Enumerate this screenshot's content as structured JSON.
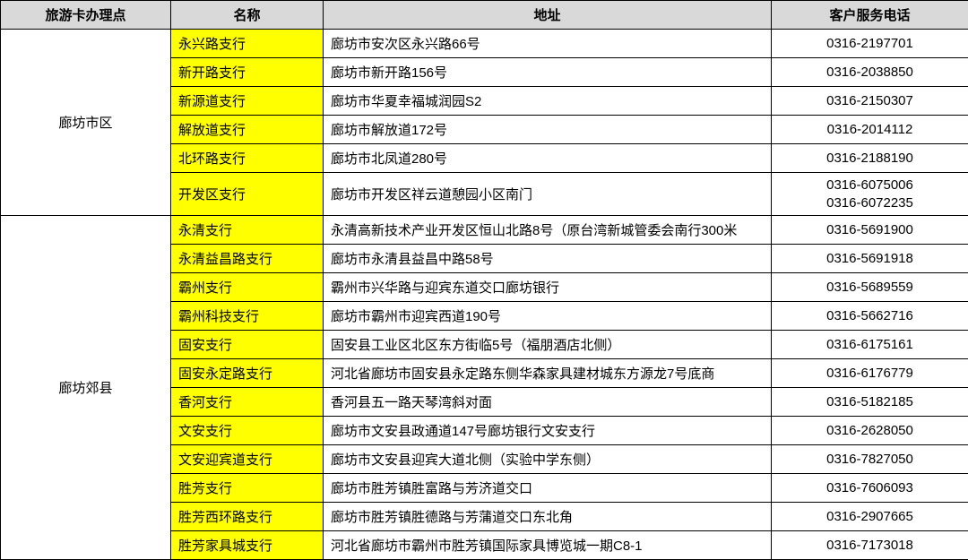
{
  "headers": {
    "region": "旅游卡办理点",
    "name": "名称",
    "address": "地址",
    "phone": "客户服务电话"
  },
  "colors": {
    "header_bg": "#d9d9d9",
    "name_bg": "#ffff00",
    "border": "#000000",
    "text": "#000000",
    "bg": "#ffffff"
  },
  "regions": [
    {
      "label": "廊坊市区",
      "rows": [
        {
          "name": "永兴路支行",
          "address": "廊坊市安次区永兴路66号",
          "phone": "0316-2197701"
        },
        {
          "name": "新开路支行",
          "address": "廊坊市新开路156号",
          "phone": "0316-2038850"
        },
        {
          "name": "新源道支行",
          "address": "廊坊市华夏幸福城润园S2",
          "phone": "0316-2150307"
        },
        {
          "name": "解放道支行",
          "address": "廊坊市解放道172号",
          "phone": "0316-2014112"
        },
        {
          "name": "北环路支行",
          "address": "廊坊市北凤道280号",
          "phone": "0316-2188190"
        },
        {
          "name": "开发区支行",
          "address": "廊坊市开发区祥云道憩园小区南门",
          "phone": "0316-6075006\n0316-6072235",
          "tall": true
        }
      ]
    },
    {
      "label": "廊坊郊县",
      "rows": [
        {
          "name": "永清支行",
          "address": "永清高新技术产业开发区恒山北路8号（原台湾新城管委会南行300米",
          "phone": "0316-5691900"
        },
        {
          "name": "永清益昌路支行",
          "address": "廊坊市永清县益昌中路58号",
          "phone": "0316-5691918"
        },
        {
          "name": "霸州支行",
          "address": "霸州市兴华路与迎宾东道交口廊坊银行",
          "phone": "0316-5689559"
        },
        {
          "name": "霸州科技支行",
          "address": "廊坊市霸州市迎宾西道190号",
          "phone": "0316-5662716"
        },
        {
          "name": "固安支行",
          "address": "固安县工业区北区东方街临5号（福朋酒店北侧）",
          "phone": "0316-6175161"
        },
        {
          "name": "固安永定路支行",
          "address": "河北省廊坊市固安县永定路东侧华森家具建材城东方源龙7号底商",
          "phone": "0316-6176779"
        },
        {
          "name": "香河支行",
          "address": "香河县五一路天琴湾斜对面",
          "phone": "0316-5182185"
        },
        {
          "name": "文安支行",
          "address": "廊坊市文安县政通道147号廊坊银行文安支行",
          "phone": "0316-2628050"
        },
        {
          "name": "文安迎宾道支行",
          "address": "廊坊市文安县迎宾大道北侧（实验中学东侧）",
          "phone": "0316-7827050"
        },
        {
          "name": "胜芳支行",
          "address": "廊坊市胜芳镇胜富路与芳济道交口",
          "phone": "0316-7606093"
        },
        {
          "name": "胜芳西环路支行",
          "address": "廊坊市胜芳镇胜德路与芳蒲道交口东北角",
          "phone": "0316-2907665"
        },
        {
          "name": "胜芳家具城支行",
          "address": "河北省廊坊市霸州市胜芳镇国际家具博览城一期C8-1",
          "phone": "0316-7173018"
        }
      ]
    }
  ]
}
